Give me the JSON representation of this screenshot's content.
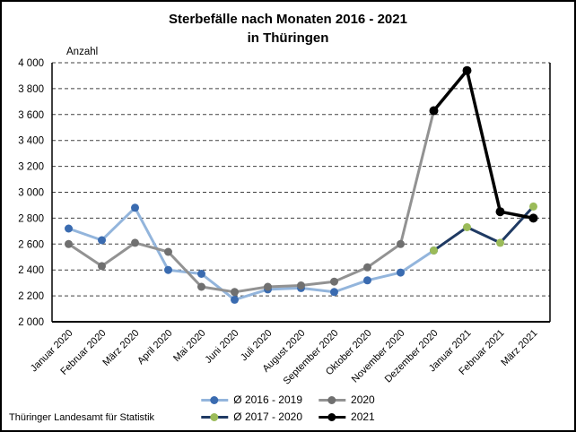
{
  "page": {
    "title_line1": "Sterbefälle nach Monaten 2016 - 2021",
    "title_line2": "in Thüringen",
    "source": "Thüringer Landesamt für Statistik"
  },
  "chart_data": {
    "type": "line",
    "title": "Sterbefälle nach Monaten 2016 - 2021 in Thüringen",
    "xlabel": "",
    "ylabel": "Anzahl",
    "ylim": [
      2000,
      4000
    ],
    "ytick_step": 200,
    "y_ticks": [
      "2 000",
      "2 200",
      "2 400",
      "2 600",
      "2 800",
      "3 000",
      "3 200",
      "3 400",
      "3 600",
      "3 800",
      "4 000"
    ],
    "grid": "horizontal-dashed",
    "grid_color": "#404040",
    "legend_position": "bottom-center",
    "categories": [
      "Januar 2020",
      "Februar 2020",
      "März 2020",
      "April 2020",
      "Mai 2020",
      "Juni 2020",
      "Juli 2020",
      "August 2020",
      "September 2020",
      "Oktober 2020",
      "November 2020",
      "Dezember 2020",
      "Januar 2021",
      "Februar 2021",
      "März 2021"
    ],
    "series": [
      {
        "name": "Ø 2016 - 2019",
        "line_color": "#93B5DC",
        "marker_color": "#3A6BB0",
        "values": [
          2720,
          2630,
          2880,
          2400,
          2370,
          2170,
          2250,
          2260,
          2230,
          2320,
          2380,
          2550,
          null,
          null,
          null
        ]
      },
      {
        "name": "2020",
        "line_color": "#929292",
        "marker_color": "#707070",
        "values": [
          2600,
          2430,
          2610,
          2540,
          2270,
          2230,
          2270,
          2280,
          2310,
          2420,
          2600,
          3630,
          null,
          null,
          null
        ]
      },
      {
        "name": "Ø 2017 - 2020",
        "line_color": "#1F3A63",
        "marker_color": "#9BBB59",
        "values": [
          null,
          null,
          null,
          null,
          null,
          null,
          null,
          null,
          null,
          null,
          null,
          2550,
          2730,
          2610,
          2890
        ]
      },
      {
        "name": "2021",
        "line_color": "#000000",
        "marker_color": "#000000",
        "values": [
          null,
          null,
          null,
          null,
          null,
          null,
          null,
          null,
          null,
          null,
          null,
          3630,
          3940,
          2850,
          2800
        ]
      }
    ]
  }
}
